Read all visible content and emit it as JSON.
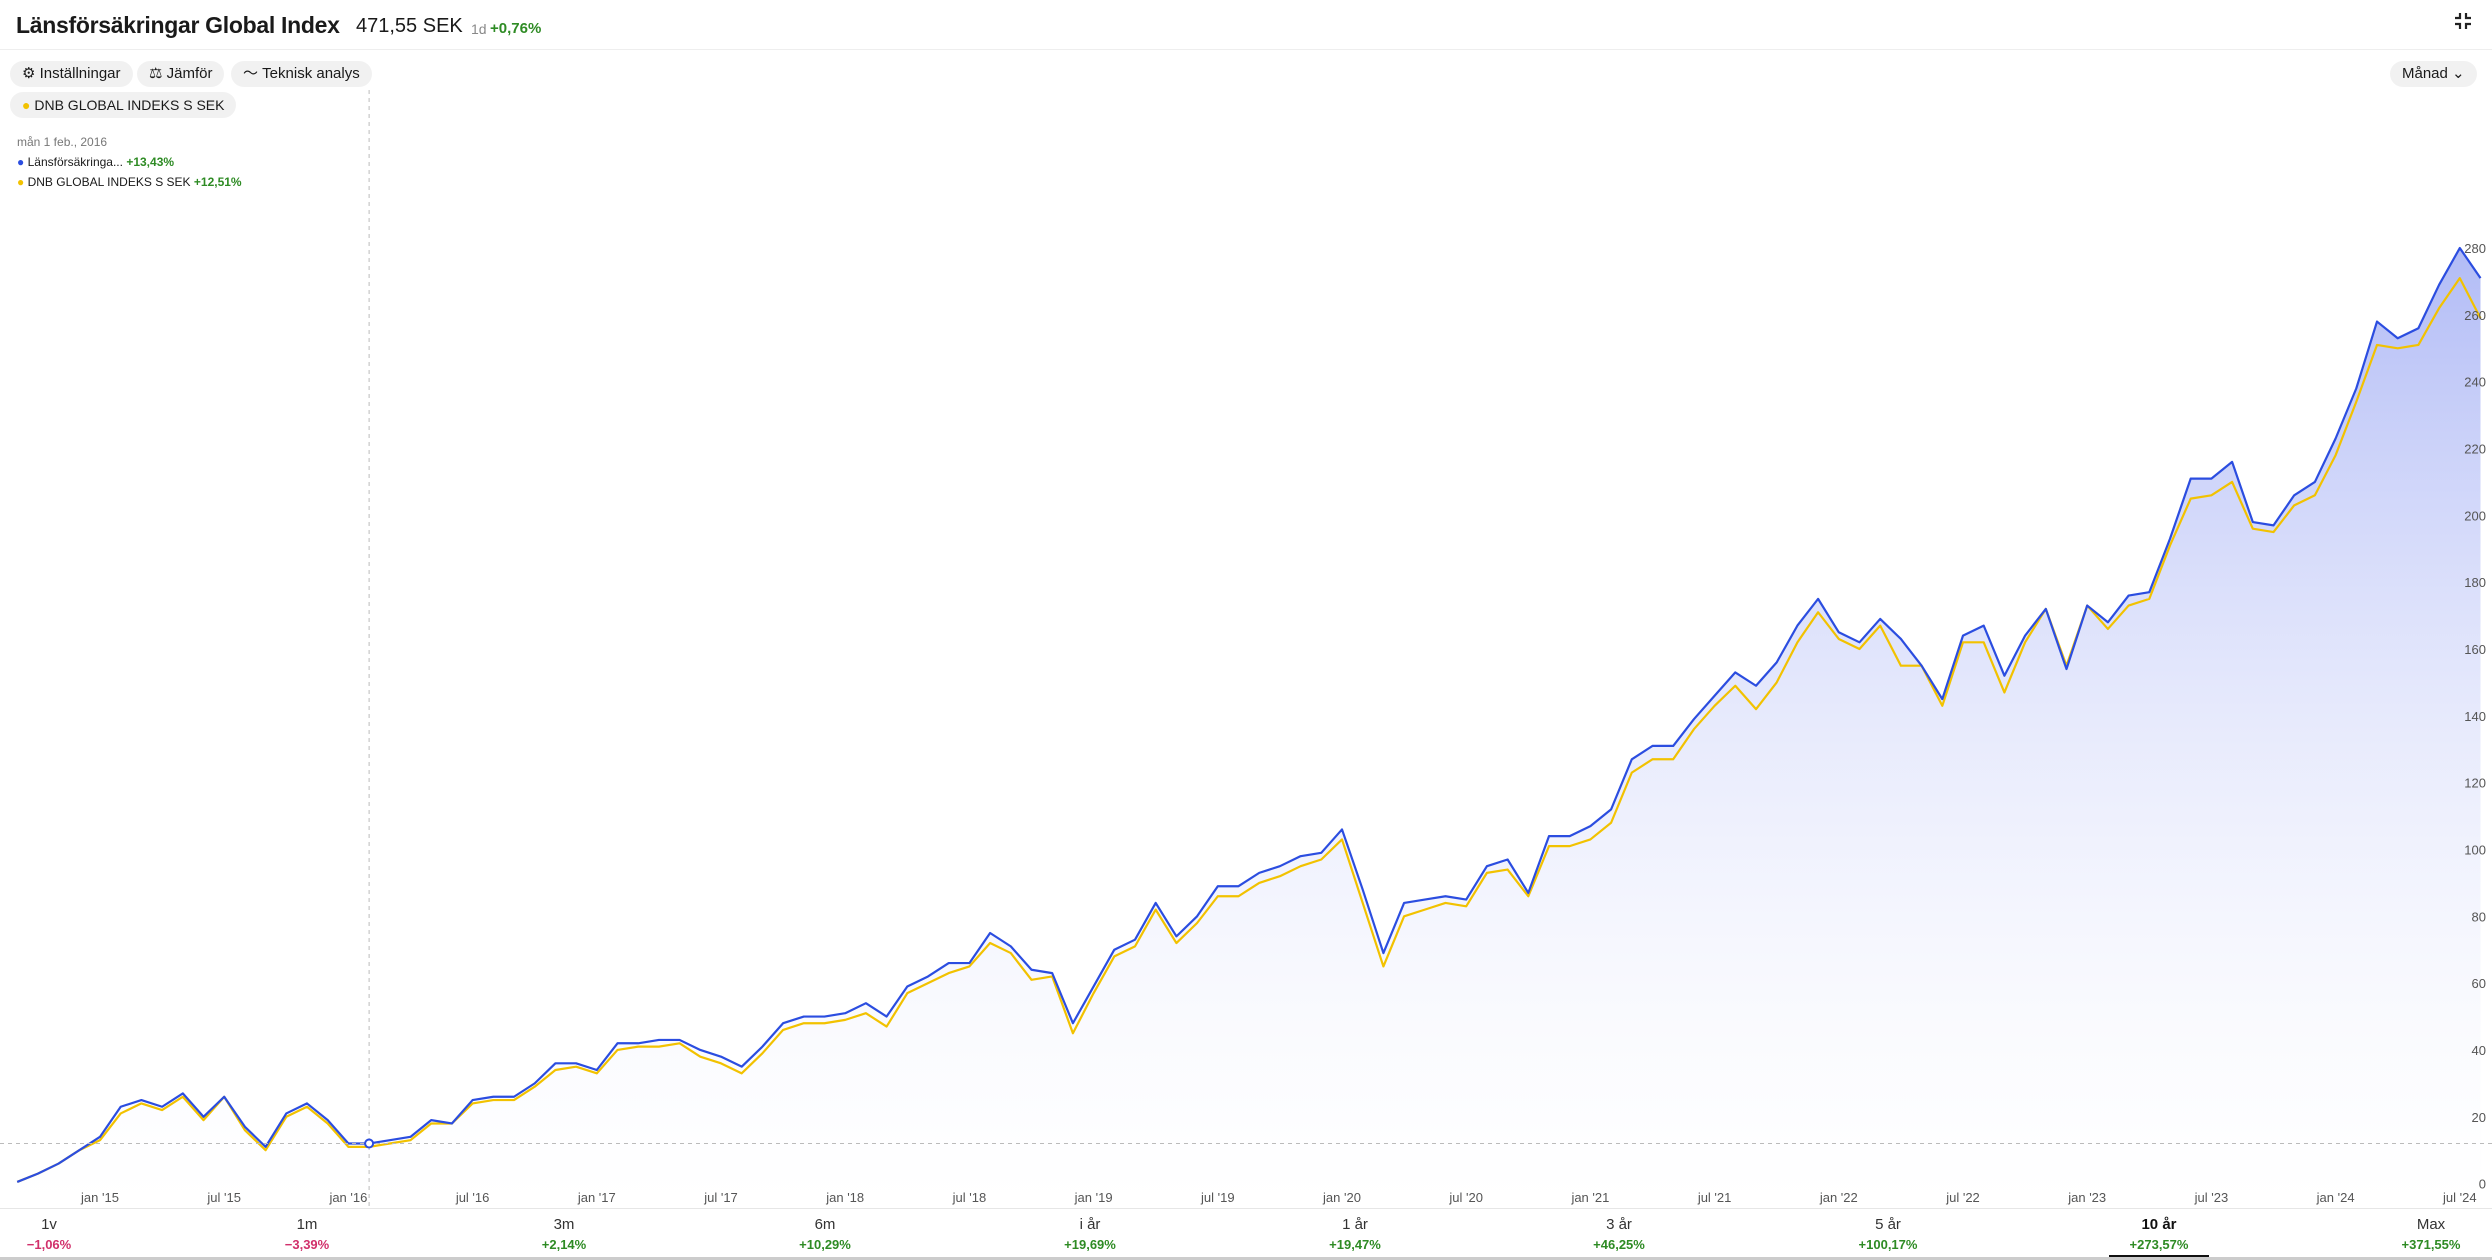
{
  "header": {
    "title": "Länsförsäkringar Global Index",
    "price": "471,55 SEK",
    "period": "1d",
    "change": "+0,76%"
  },
  "toolbar": {
    "settings": "Inställningar",
    "compare": "Jämför",
    "technical": "Teknisk analys",
    "interval": "Månad"
  },
  "compare_chip": "DNB GLOBAL INDEKS S SEK",
  "tooltip": {
    "date": "mån 1 feb., 2016",
    "changes": [
      "+13,43%",
      "+12,51%"
    ]
  },
  "timeframes": [
    {
      "label": "1v",
      "change": "−1,06%"
    },
    {
      "label": "1m",
      "change": "−3,39%"
    },
    {
      "label": "3m",
      "change": "+2,14%"
    },
    {
      "label": "6m",
      "change": "+10,29%"
    },
    {
      "label": "i år",
      "change": "+19,69%"
    },
    {
      "label": "1 år",
      "change": "+19,47%"
    },
    {
      "label": "3 år",
      "change": "+46,25%"
    },
    {
      "label": "5 år",
      "change": "+100,17%"
    },
    {
      "label": "10 år",
      "change": "+273,57%"
    },
    {
      "label": "Max",
      "change": "+371,55%"
    }
  ],
  "chart_data": {
    "type": "line",
    "categories": [
      null,
      null,
      null,
      null,
      "jan '15",
      null,
      null,
      null,
      null,
      null,
      "jul '15",
      null,
      null,
      null,
      null,
      null,
      "jan '16",
      null,
      null,
      null,
      null,
      null,
      "jul '16",
      null,
      null,
      null,
      null,
      null,
      "jan '17",
      null,
      null,
      null,
      null,
      null,
      "jul '17",
      null,
      null,
      null,
      null,
      null,
      "jan '18",
      null,
      null,
      null,
      null,
      null,
      "jul '18",
      null,
      null,
      null,
      null,
      null,
      "jan '19",
      null,
      null,
      null,
      null,
      null,
      "jul '19",
      null,
      null,
      null,
      null,
      null,
      "jan '20",
      null,
      null,
      null,
      null,
      null,
      "jul '20",
      null,
      null,
      null,
      null,
      null,
      "jan '21",
      null,
      null,
      null,
      null,
      null,
      "jul '21",
      null,
      null,
      null,
      null,
      null,
      "jan '22",
      null,
      null,
      null,
      null,
      null,
      "jul '22",
      null,
      null,
      null,
      null,
      null,
      "jan '23",
      null,
      null,
      null,
      null,
      null,
      "jul '23",
      null,
      null,
      null,
      null,
      null,
      "jan '24",
      null,
      null,
      null,
      null,
      null,
      "jul '24",
      null
    ],
    "series": [
      {
        "name": "Länsförsäkringa...",
        "color": "#2b4de0",
        "values": [
          0.5,
          3,
          6,
          10,
          14,
          23,
          25,
          23,
          27,
          20,
          26,
          17,
          11,
          21,
          24,
          19,
          12,
          12,
          13,
          14,
          19,
          18,
          25,
          26,
          26,
          30,
          36,
          36,
          34,
          42,
          42,
          43,
          43,
          40,
          38,
          35,
          41,
          48,
          50,
          50,
          51,
          54,
          50,
          59,
          62,
          66,
          66,
          75,
          71,
          64,
          63,
          48,
          59,
          70,
          73,
          84,
          74,
          80,
          89,
          89,
          93,
          95,
          98,
          99,
          106,
          88,
          69,
          84,
          85,
          86,
          85,
          95,
          97,
          87,
          104,
          104,
          107,
          112,
          127,
          131,
          131,
          139,
          146,
          153,
          149,
          156,
          167,
          175,
          165,
          162,
          169,
          163,
          155,
          145,
          164,
          167,
          152,
          164,
          172,
          154,
          173,
          168,
          176,
          177,
          193,
          211,
          211,
          216,
          198,
          197,
          206,
          210,
          223,
          238,
          258,
          253,
          256,
          269,
          280,
          271
        ]
      },
      {
        "name": "DNB GLOBAL INDEKS S SEK",
        "color": "#f2c200",
        "values": [
          0.5,
          3,
          6,
          10,
          13,
          21,
          24,
          22,
          26,
          19,
          26,
          16,
          10,
          20,
          23,
          18,
          11,
          11,
          12,
          13,
          18,
          18,
          24,
          25,
          25,
          29,
          34,
          35,
          33,
          40,
          41,
          41,
          42,
          38,
          36,
          33,
          39,
          46,
          48,
          48,
          49,
          51,
          47,
          57,
          60,
          63,
          65,
          72,
          69,
          61,
          62,
          45,
          57,
          68,
          71,
          82,
          72,
          78,
          86,
          86,
          90,
          92,
          95,
          97,
          103,
          84,
          65,
          80,
          82,
          84,
          83,
          93,
          94,
          86,
          101,
          101,
          103,
          108,
          123,
          127,
          127,
          136,
          143,
          149,
          142,
          150,
          162,
          171,
          163,
          160,
          167,
          155,
          155,
          143,
          162,
          162,
          147,
          162,
          172,
          155,
          173,
          166,
          173,
          175,
          191,
          205,
          206,
          210,
          196,
          195,
          203,
          206,
          218,
          234,
          251,
          250,
          251,
          262,
          271,
          259
        ]
      }
    ],
    "ylim": [
      -7,
      327
    ],
    "yticks": [
      0,
      20,
      40,
      60,
      80,
      100,
      120,
      140,
      160,
      180,
      200,
      220,
      240,
      260,
      280
    ],
    "grid": false,
    "area_fill": "#a9b4f5"
  }
}
